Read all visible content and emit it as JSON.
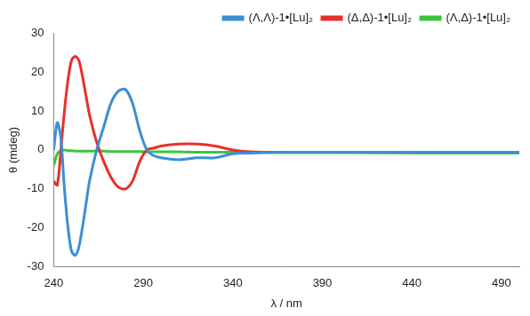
{
  "chart_data": {
    "type": "line",
    "x_label": "λ / nm",
    "y_label": "θ (mdeg)",
    "x": [
      240,
      242,
      244,
      246,
      248,
      250,
      252,
      254,
      256,
      258,
      260,
      264,
      268,
      272,
      276,
      280,
      284,
      288,
      292,
      296,
      300,
      310,
      320,
      330,
      340,
      350,
      370,
      400,
      450,
      500
    ],
    "series": [
      {
        "name": "(Λ,Λ)-1•[Lu]₂",
        "color": "#3b8fd4",
        "values": [
          0,
          7,
          3,
          -10,
          -20,
          -26,
          -27,
          -25,
          -20,
          -14,
          -8,
          0,
          6,
          12,
          15,
          15.5,
          12,
          5,
          0,
          -1.5,
          -2,
          -2.5,
          -2,
          -2,
          -1,
          -0.8,
          -0.6,
          -0.6,
          -0.6,
          -0.6
        ]
      },
      {
        "name": "(Δ,Δ)-1•[Lu]₂",
        "color": "#e8302a",
        "values": [
          -8,
          -9,
          0,
          10,
          18,
          23,
          24,
          23,
          19,
          14,
          9,
          2,
          -3,
          -7,
          -9.5,
          -10,
          -8,
          -3,
          0,
          0.5,
          1,
          1.5,
          1.5,
          1,
          0,
          -0.5,
          -0.6,
          -0.6,
          -0.6,
          -0.6
        ]
      },
      {
        "name": "(Λ,Δ)-1•[Lu]₂",
        "color": "#3cc43c",
        "values": [
          -4,
          -1,
          -0.2,
          0,
          -0.2,
          -0.2,
          -0.3,
          -0.3,
          -0.3,
          -0.3,
          -0.3,
          -0.3,
          -0.3,
          -0.4,
          -0.4,
          -0.4,
          -0.4,
          -0.4,
          -0.5,
          -0.5,
          -0.5,
          -0.5,
          -0.6,
          -0.6,
          -0.6,
          -0.6,
          -0.7,
          -0.7,
          -0.8,
          -0.8
        ]
      }
    ],
    "xlim": [
      240,
      500
    ],
    "xticks": [
      240,
      290,
      340,
      390,
      440,
      490
    ],
    "ylim": [
      -30,
      30
    ],
    "yticks": [
      -30,
      -20,
      -10,
      0,
      10,
      20,
      30
    ],
    "grid": false,
    "legend": "upper right"
  }
}
